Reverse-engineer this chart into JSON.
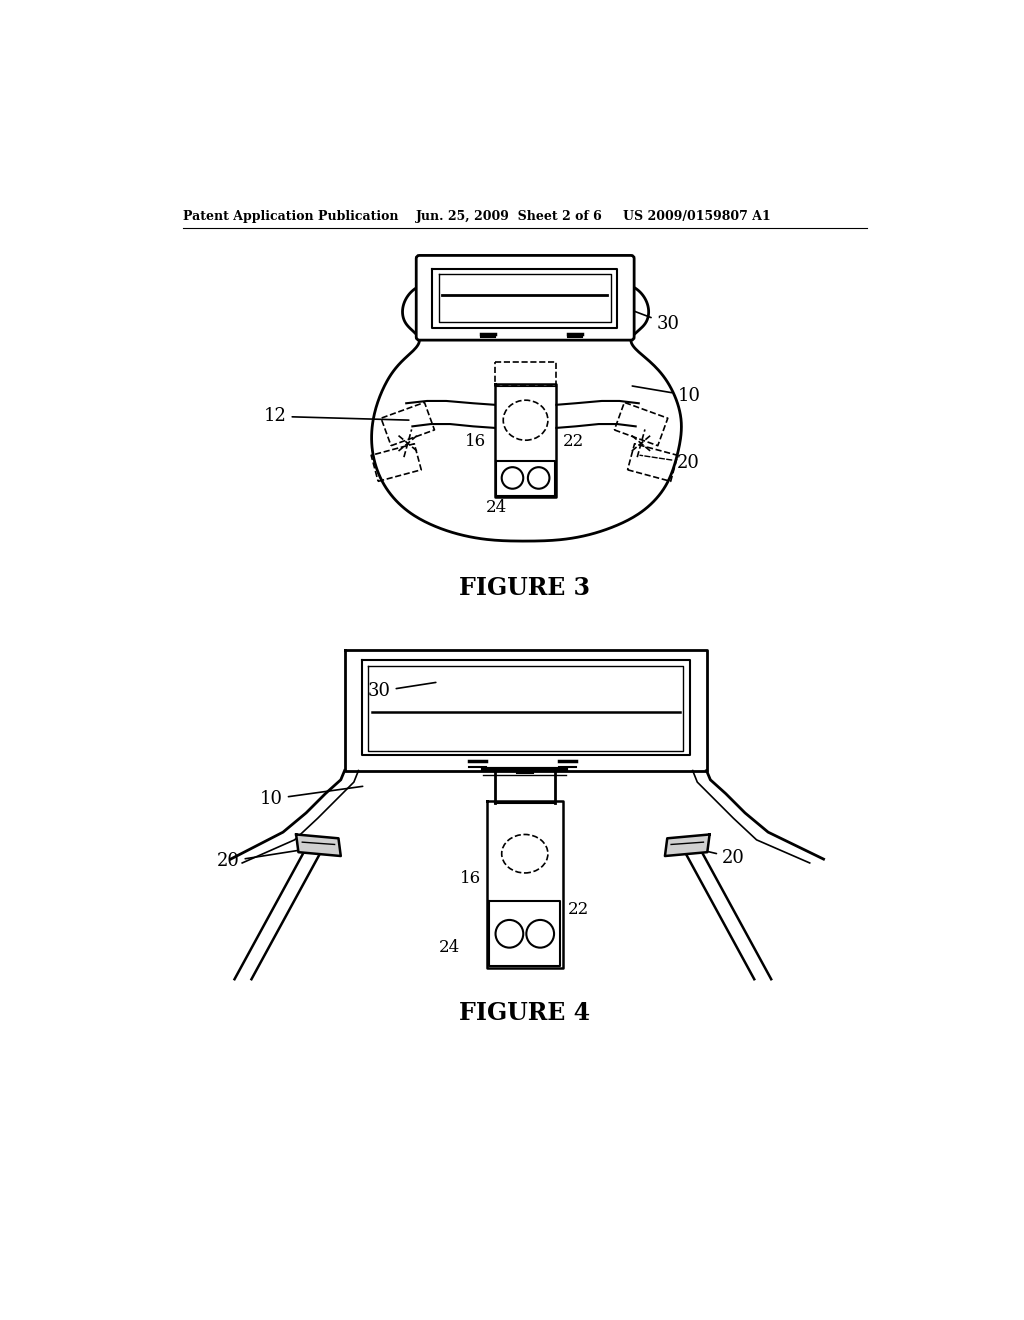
{
  "bg_color": "#ffffff",
  "line_color": "#000000",
  "header_left": "Patent Application Publication",
  "header_mid": "Jun. 25, 2009  Sheet 2 of 6",
  "header_right": "US 2009/0159807 A1",
  "fig3_title": "FIGURE 3",
  "fig4_title": "FIGURE 4"
}
